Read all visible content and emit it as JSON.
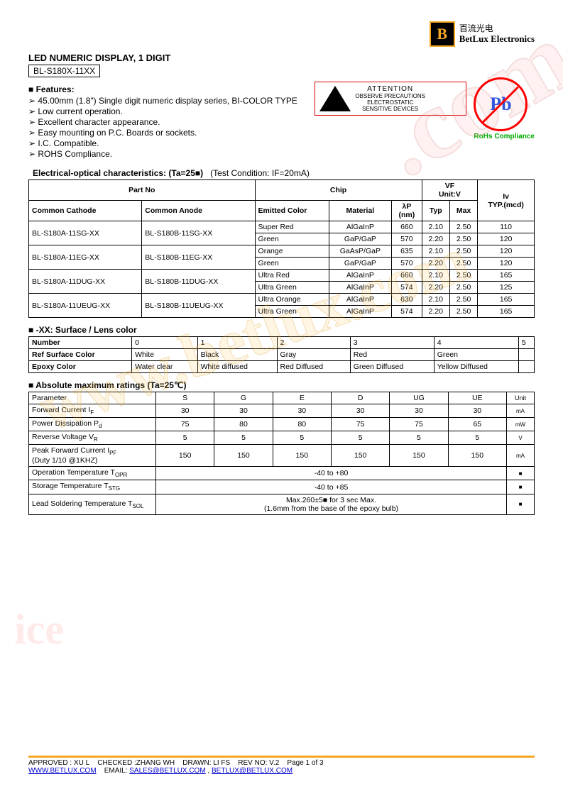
{
  "logo": {
    "letter": "B",
    "cn": "百流光电",
    "en": "BetLux Electronics"
  },
  "title": "LED NUMERIC DISPLAY, 1 DIGIT",
  "part": "BL-S180X-11XX",
  "features_head": "Features:",
  "features": [
    "45.00mm (1.8\") Single digit numeric display series, BI-COLOR TYPE",
    "Low current operation.",
    "Excellent character appearance.",
    "Easy mounting on P.C. Boards or sockets.",
    "I.C. Compatible.",
    "ROHS Compliance."
  ],
  "esd": {
    "title": "ATTENTION",
    "line1": "OBSERVE PRECAUTIONS",
    "line2": "ELECTROSTATIC",
    "line3": "SENSITIVE DEVICES"
  },
  "pb": {
    "symbol": "Pb",
    "label": "RoHs Compliance"
  },
  "eo_title": "Electrical-optical characteristics: (Ta=25■)",
  "eo_cond": "(Test Condition: IF=20mA)",
  "eo_head": {
    "partno": "Part No",
    "chip": "Chip",
    "vf": "VF",
    "vfunit": "Unit:V",
    "cc": "Common Cathode",
    "ca": "Common Anode",
    "emitted": "Emitted Color",
    "material": "Material",
    "lp": "λP",
    "lpu": "(nm)",
    "typ": "Typ",
    "max": "Max",
    "iv": "Iv",
    "ivu": "TYP.(mcd)"
  },
  "eo_rows": [
    {
      "cc": "BL-S180A-11SG-XX",
      "ca": "BL-S180B-11SG-XX",
      "sub": [
        {
          "color": "Super Red",
          "mat": "AlGaInP",
          "lp": "660",
          "typ": "2.10",
          "max": "2.50",
          "iv": "110"
        },
        {
          "color": "Green",
          "mat": "GaP/GaP",
          "lp": "570",
          "typ": "2.20",
          "max": "2.50",
          "iv": "120"
        }
      ]
    },
    {
      "cc": "BL-S180A-11EG-XX",
      "ca": "BL-S180B-11EG-XX",
      "sub": [
        {
          "color": "Orange",
          "mat": "GaAsP/GaP",
          "lp": "635",
          "typ": "2.10",
          "max": "2.50",
          "iv": "120"
        },
        {
          "color": "Green",
          "mat": "GaP/GaP",
          "lp": "570",
          "typ": "2.20",
          "max": "2.50",
          "iv": "120"
        }
      ]
    },
    {
      "cc": "BL-S180A-11DUG-XX",
      "ca": "BL-S180B-11DUG-XX",
      "sub": [
        {
          "color": "Ultra Red",
          "mat": "AlGaInP",
          "lp": "660",
          "typ": "2.10",
          "max": "2.50",
          "iv": "165"
        },
        {
          "color": "Ultra Green",
          "mat": "AlGaInP",
          "lp": "574",
          "typ": "2.20",
          "max": "2.50",
          "iv": "125"
        }
      ]
    },
    {
      "cc": "BL-S180A-11UEUG-XX",
      "ca": "BL-S180B-11UEUG-XX",
      "sub": [
        {
          "color": "Ultra Orange",
          "mat": "AlGaInP",
          "lp": "630",
          "typ": "2.10",
          "max": "2.50",
          "iv": "165"
        },
        {
          "color": "Ultra Green",
          "mat": "AlGaInP",
          "lp": "574",
          "typ": "2.20",
          "max": "2.50",
          "iv": "165"
        }
      ]
    }
  ],
  "lens_title": "-XX: Surface / Lens color",
  "lens": {
    "head": [
      "Number",
      "0",
      "1",
      "2",
      "3",
      "4",
      "5"
    ],
    "rows": [
      [
        "Ref Surface Color",
        "White",
        "Black",
        "Gray",
        "Red",
        "Green",
        ""
      ],
      [
        "Epoxy Color",
        "Water clear",
        "White diffused",
        "Red Diffused",
        "Green Diffused",
        "Yellow Diffused",
        ""
      ]
    ]
  },
  "amr_title": "Absolute maximum ratings (Ta=25℃)",
  "amr": {
    "head": [
      "Parameter",
      "S",
      "G",
      "E",
      "D",
      "UG",
      "UE",
      "Unit"
    ],
    "rows": [
      {
        "p": "Forward Current I",
        "sub": "F",
        "v": [
          "30",
          "30",
          "30",
          "30",
          "30",
          "30"
        ],
        "u": "mA"
      },
      {
        "p": "Power Dissipation P",
        "sub": "d",
        "v": [
          "75",
          "80",
          "80",
          "75",
          "75",
          "65"
        ],
        "u": "mW"
      },
      {
        "p": "Reverse Voltage V",
        "sub": "R",
        "v": [
          "5",
          "5",
          "5",
          "5",
          "5",
          "5"
        ],
        "u": "V"
      },
      {
        "p": "Peak Forward Current I",
        "sub": "PF",
        "note": "(Duty 1/10 @1KHZ)",
        "v": [
          "150",
          "150",
          "150",
          "150",
          "150",
          "150"
        ],
        "u": "mA"
      },
      {
        "p": "Operation Temperature T",
        "sub": "OPR",
        "span": "-40 to +80",
        "u": "■"
      },
      {
        "p": "Storage Temperature T",
        "sub": "STG",
        "span": "-40 to +85",
        "u": "■"
      },
      {
        "p": "Lead Soldering Temperature T",
        "sub": "SOL",
        "span": "Max.260±5■   for 3 sec Max.\n(1.6mm from the base of the epoxy bulb)",
        "u": "■"
      }
    ]
  },
  "footer": {
    "approved": "APPROVED : XU L",
    "checked": "CHECKED :ZHANG WH",
    "drawn": "DRAWN: LI FS",
    "rev": "REV NO: V.2",
    "page": "Page 1 of 3",
    "url": "WWW.BETLUX.COM",
    "email_lbl": "EMAIL:",
    "email1": "SALES@BETLUX.COM",
    "email2": "BETLUX@BETLUX.COM"
  },
  "watermarks": {
    "w1": "www.betlux.com",
    "w2": ".com",
    "w3": "ice"
  }
}
